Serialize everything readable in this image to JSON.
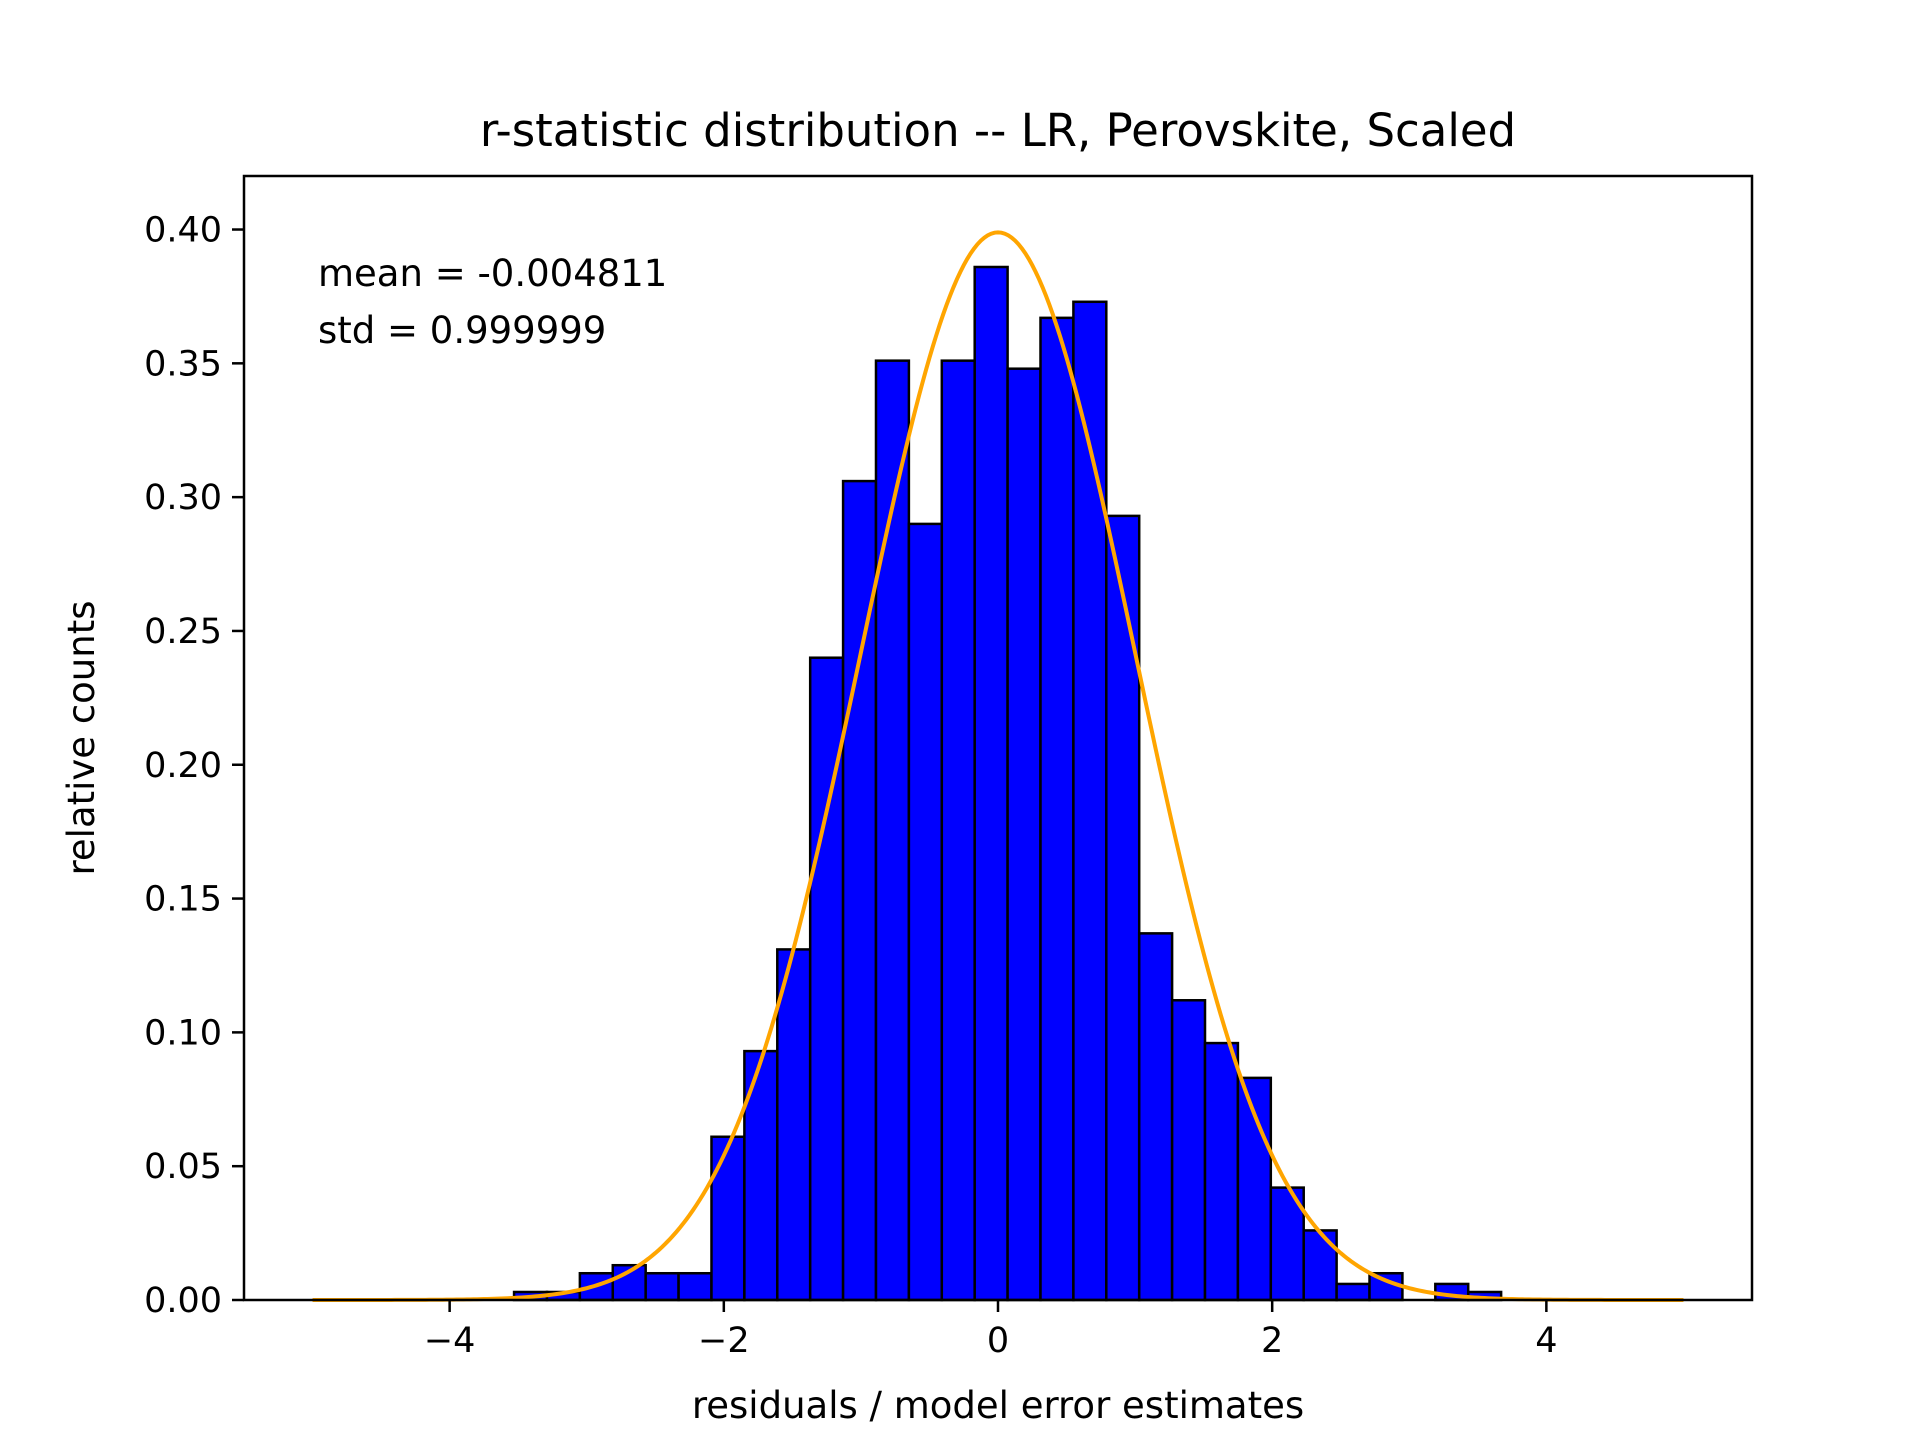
{
  "chart_data": {
    "type": "bar",
    "title": "r-statistic distribution -- LR, Perovskite, Scaled",
    "xlabel": "residuals / model error estimates",
    "ylabel": "relative counts",
    "xlim": [
      -5.5,
      5.5
    ],
    "ylim": [
      0,
      0.42
    ],
    "xticks": [
      -4,
      -2,
      0,
      2,
      4
    ],
    "xtick_labels": [
      "−4",
      "−2",
      "0",
      "2",
      "4"
    ],
    "yticks": [
      0,
      0.05,
      0.1,
      0.15,
      0.2,
      0.25,
      0.3,
      0.35,
      0.4
    ],
    "ytick_labels": [
      "0.00",
      "0.05",
      "0.10",
      "0.15",
      "0.20",
      "0.25",
      "0.30",
      "0.35",
      "0.40"
    ],
    "grid": false,
    "bar_color": "#0000ff",
    "bar_edge_color": "#000000",
    "curve_color": "#ffa500",
    "bins": [
      {
        "x0": -3.53,
        "x1": -3.29,
        "value": 0.003
      },
      {
        "x0": -3.29,
        "x1": -3.05,
        "value": 0.003
      },
      {
        "x0": -3.05,
        "x1": -2.81,
        "value": 0.01
      },
      {
        "x0": -2.81,
        "x1": -2.57,
        "value": 0.013
      },
      {
        "x0": -2.57,
        "x1": -2.33,
        "value": 0.01
      },
      {
        "x0": -2.33,
        "x1": -2.09,
        "value": 0.01
      },
      {
        "x0": -2.09,
        "x1": -1.85,
        "value": 0.061
      },
      {
        "x0": -1.85,
        "x1": -1.61,
        "value": 0.093
      },
      {
        "x0": -1.61,
        "x1": -1.37,
        "value": 0.131
      },
      {
        "x0": -1.37,
        "x1": -1.13,
        "value": 0.24
      },
      {
        "x0": -1.13,
        "x1": -0.89,
        "value": 0.306
      },
      {
        "x0": -0.89,
        "x1": -0.65,
        "value": 0.351
      },
      {
        "x0": -0.65,
        "x1": -0.41,
        "value": 0.29
      },
      {
        "x0": -0.41,
        "x1": -0.17,
        "value": 0.351
      },
      {
        "x0": -0.17,
        "x1": 0.07,
        "value": 0.386
      },
      {
        "x0": 0.07,
        "x1": 0.31,
        "value": 0.348
      },
      {
        "x0": 0.31,
        "x1": 0.55,
        "value": 0.367
      },
      {
        "x0": 0.55,
        "x1": 0.79,
        "value": 0.373
      },
      {
        "x0": 0.79,
        "x1": 1.03,
        "value": 0.293
      },
      {
        "x0": 1.03,
        "x1": 1.27,
        "value": 0.137
      },
      {
        "x0": 1.27,
        "x1": 1.51,
        "value": 0.112
      },
      {
        "x0": 1.51,
        "x1": 1.75,
        "value": 0.096
      },
      {
        "x0": 1.75,
        "x1": 1.99,
        "value": 0.083
      },
      {
        "x0": 1.99,
        "x1": 2.23,
        "value": 0.042
      },
      {
        "x0": 2.23,
        "x1": 2.47,
        "value": 0.026
      },
      {
        "x0": 2.47,
        "x1": 2.71,
        "value": 0.006
      },
      {
        "x0": 2.71,
        "x1": 2.95,
        "value": 0.01
      },
      {
        "x0": 3.19,
        "x1": 3.43,
        "value": 0.006
      },
      {
        "x0": 3.43,
        "x1": 3.67,
        "value": 0.003
      }
    ],
    "fit_curve": {
      "type": "normal_pdf",
      "mean": 0,
      "std": 1,
      "x_range": [
        -5,
        5
      ]
    },
    "annotations": [
      "mean = -0.004811",
      "std = 0.999999"
    ]
  }
}
